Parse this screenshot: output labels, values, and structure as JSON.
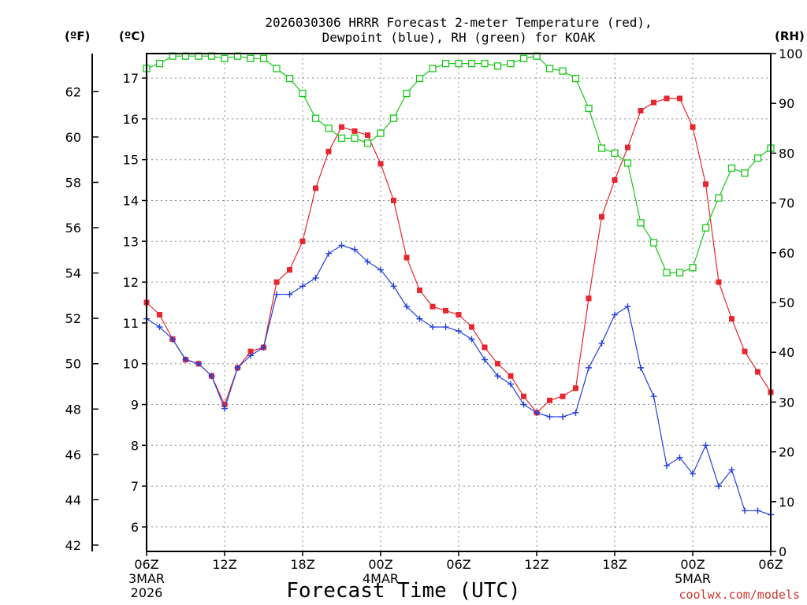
{
  "title": {
    "line1": "2026030306 HRRR Forecast 2-meter Temperature (red),",
    "line2": "Dewpoint (blue), RH (green) for KOAK"
  },
  "axis_units": {
    "left_f": "(ºF)",
    "left_c": "(ºC)",
    "right": "(RH)"
  },
  "x_axis": {
    "label": "Forecast Time (UTC)"
  },
  "credit": "coolwx.com/models",
  "colors": {
    "temp": "#e8262d",
    "dewpoint": "#2340e0",
    "rh": "#18c818"
  },
  "chart_data": {
    "type": "line",
    "title": "2026030306 HRRR Forecast 2-meter Temperature (red), Dewpoint (blue), RH (green) for KOAK",
    "xlabel": "Forecast Time (UTC)",
    "ylabel_left": "Temperature (ºC)",
    "ylabel_right": "RH (%)",
    "xlim_hours": [
      0,
      48
    ],
    "ylim_c": [
      5.4,
      17.6
    ],
    "ylim_rh": [
      0,
      100
    ],
    "x_ticks": [
      {
        "hour": 0,
        "label": "06Z",
        "sub1": "3MAR",
        "sub2": "2026"
      },
      {
        "hour": 6,
        "label": "12Z"
      },
      {
        "hour": 12,
        "label": "18Z"
      },
      {
        "hour": 18,
        "label": "00Z",
        "sub1": "4MAR"
      },
      {
        "hour": 24,
        "label": "06Z"
      },
      {
        "hour": 30,
        "label": "12Z"
      },
      {
        "hour": 36,
        "label": "18Z"
      },
      {
        "hour": 42,
        "label": "00Z",
        "sub1": "5MAR"
      },
      {
        "hour": 48,
        "label": "06Z"
      }
    ],
    "y_ticks_c": [
      6,
      7,
      8,
      9,
      10,
      11,
      12,
      13,
      14,
      15,
      16,
      17
    ],
    "y_ticks_f": [
      42,
      44,
      46,
      48,
      50,
      52,
      54,
      56,
      58,
      60,
      62
    ],
    "y_ticks_rh": [
      0,
      10,
      20,
      30,
      40,
      50,
      60,
      70,
      80,
      90,
      100
    ],
    "x_hours": [
      0,
      1,
      2,
      3,
      4,
      5,
      6,
      7,
      8,
      9,
      10,
      11,
      12,
      13,
      14,
      15,
      16,
      17,
      18,
      19,
      20,
      21,
      22,
      23,
      24,
      25,
      26,
      27,
      28,
      29,
      30,
      31,
      32,
      33,
      34,
      35,
      36,
      37,
      38,
      39,
      40,
      41,
      42,
      43,
      44,
      45,
      46,
      47,
      48
    ],
    "series": [
      {
        "name": "Temperature (ºC)",
        "values": [
          11.5,
          11.2,
          10.6,
          10.1,
          10.0,
          9.7,
          9.0,
          9.9,
          10.3,
          10.4,
          12.0,
          12.3,
          13.0,
          14.3,
          15.2,
          15.8,
          15.7,
          15.6,
          14.9,
          14.0,
          12.6,
          11.8,
          11.4,
          11.3,
          11.2,
          10.9,
          10.4,
          10.0,
          9.7,
          9.2,
          8.8,
          9.1,
          9.2,
          9.4,
          11.6,
          13.6,
          14.5,
          15.3,
          16.2,
          16.4,
          16.5,
          16.5,
          15.8,
          14.4,
          12.0,
          11.1,
          10.3,
          9.8,
          9.3
        ]
      },
      {
        "name": "Dewpoint (ºC)",
        "values": [
          11.1,
          10.9,
          10.6,
          10.1,
          10.0,
          9.7,
          8.9,
          9.9,
          10.2,
          10.4,
          11.7,
          11.7,
          11.9,
          12.1,
          12.7,
          12.9,
          12.8,
          12.5,
          12.3,
          11.9,
          11.4,
          11.1,
          10.9,
          10.9,
          10.8,
          10.6,
          10.1,
          9.7,
          9.5,
          9.0,
          8.8,
          8.7,
          8.7,
          8.8,
          9.9,
          10.5,
          11.2,
          11.4,
          9.9,
          9.2,
          7.5,
          7.7,
          7.3,
          8.0,
          7.0,
          7.4,
          6.4,
          6.4,
          6.3
        ]
      },
      {
        "name": "RH (%)",
        "values": [
          97,
          98,
          99.5,
          99.5,
          99.5,
          99.5,
          99,
          99.5,
          99,
          99,
          97,
          95,
          92,
          87,
          85,
          83,
          83,
          82,
          84,
          87,
          92,
          95,
          97,
          98,
          98,
          98,
          98,
          97.5,
          98,
          99,
          99.5,
          97,
          96.5,
          95,
          89,
          81,
          80,
          78,
          66,
          62,
          56,
          56,
          57,
          65,
          71,
          77,
          76,
          79,
          81
        ]
      }
    ]
  }
}
